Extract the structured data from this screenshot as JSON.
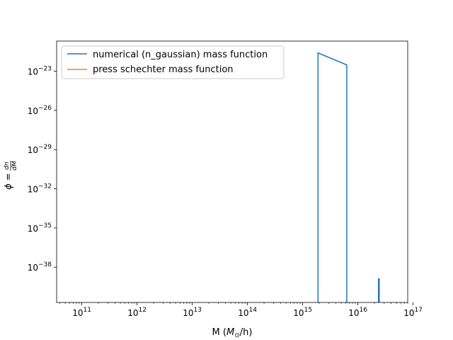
{
  "chart_data": {
    "type": "line",
    "xscale": "log",
    "yscale": "log",
    "xlabel": {
      "main": "M (",
      "math": "M",
      "sub": "⊙",
      "tail": "/h)"
    },
    "ylabel": {
      "phi": "ϕ",
      "eq": " = ",
      "num": "dn",
      "den": "dM"
    },
    "xlim": [
      35000000000.0,
      8e+16
    ],
    "ylim": [
      2e-41,
      2e-21
    ],
    "x_ticks": [
      {
        "value": 100000000000.0,
        "base": "10",
        "exp": "11"
      },
      {
        "value": 1000000000000.0,
        "base": "10",
        "exp": "12"
      },
      {
        "value": 10000000000000.0,
        "base": "10",
        "exp": "13"
      },
      {
        "value": 100000000000000.0,
        "base": "10",
        "exp": "14"
      },
      {
        "value": 1000000000000000.0,
        "base": "10",
        "exp": "15"
      },
      {
        "value": 1e+16,
        "base": "10",
        "exp": "16"
      },
      {
        "value": 1e+17,
        "base": "10",
        "exp": "17"
      }
    ],
    "y_ticks": [
      {
        "value": 1e-23,
        "base": "10",
        "exp": "−23"
      },
      {
        "value": 1e-26,
        "base": "10",
        "exp": "−26"
      },
      {
        "value": 1e-29,
        "base": "10",
        "exp": "−29"
      },
      {
        "value": 1e-32,
        "base": "10",
        "exp": "−32"
      },
      {
        "value": 1e-35,
        "base": "10",
        "exp": "−35"
      },
      {
        "value": 1e-38,
        "base": "10",
        "exp": "−38"
      }
    ],
    "grid": false,
    "legend_position": "upper-left",
    "series": [
      {
        "name": "numerical (n_gaussian) mass function",
        "color": "#1f77b4",
        "segments": [
          [
            [
              1900000000000000.0,
              2e-41
            ],
            [
              1900000000000000.0,
              2.5e-22
            ],
            [
              6300000000000000.0,
              3e-23
            ],
            [
              6300000000000000.0,
              2e-41
            ]
          ],
          [
            [
              2.4e+16,
              2e-41
            ],
            [
              2.4e+16,
              1.4e-39
            ]
          ]
        ]
      },
      {
        "name": "press schechter mass function",
        "color": "#ff7f0e",
        "segments": []
      }
    ]
  }
}
